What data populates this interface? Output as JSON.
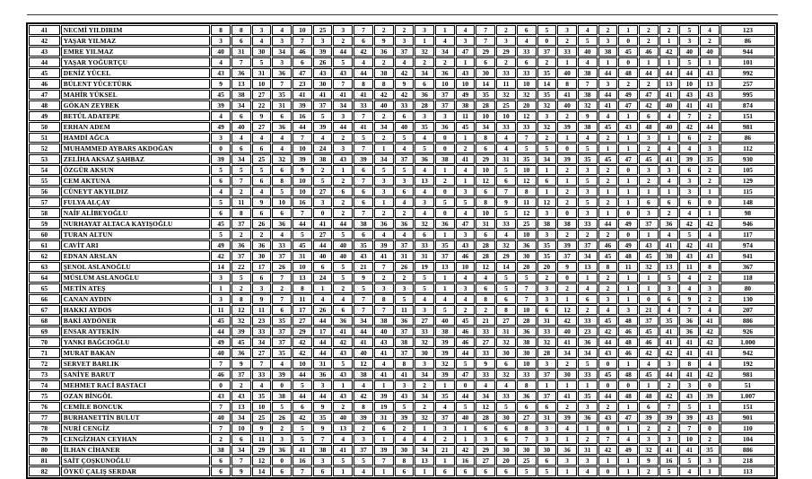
{
  "table": {
    "rows": [
      {
        "no": "41",
        "name": "NECMİ YILDIRIM",
        "values": [
          8,
          8,
          3,
          4,
          10,
          25,
          3,
          7,
          2,
          2,
          3,
          1,
          4,
          7,
          2,
          6,
          5,
          3,
          4,
          2,
          1,
          2,
          2,
          5,
          4
        ],
        "total": "123"
      },
      {
        "no": "42",
        "name": "YAŞAR YILMAZ",
        "values": [
          3,
          6,
          4,
          3,
          7,
          3,
          2,
          6,
          9,
          3,
          1,
          4,
          3,
          7,
          3,
          4,
          0,
          2,
          5,
          3,
          0,
          2,
          1,
          3,
          2
        ],
        "total": "86"
      },
      {
        "no": "43",
        "name": "EMRE YILMAZ",
        "values": [
          40,
          31,
          30,
          34,
          46,
          39,
          44,
          42,
          36,
          37,
          32,
          34,
          47,
          29,
          29,
          33,
          37,
          33,
          40,
          38,
          45,
          46,
          42,
          40,
          40
        ],
        "total": "944"
      },
      {
        "no": "44",
        "name": "YAŞAR YOĞURTÇU",
        "values": [
          4,
          7,
          5,
          3,
          6,
          26,
          5,
          4,
          2,
          4,
          2,
          2,
          1,
          6,
          2,
          6,
          2,
          1,
          4,
          1,
          0,
          1,
          1,
          5,
          1
        ],
        "total": "101"
      },
      {
        "no": "45",
        "name": "DENİZ YÜCEL",
        "values": [
          43,
          36,
          31,
          36,
          47,
          43,
          43,
          44,
          38,
          42,
          34,
          36,
          43,
          30,
          33,
          33,
          35,
          40,
          38,
          44,
          48,
          44,
          44,
          44,
          43
        ],
        "total": "992"
      },
      {
        "no": "46",
        "name": "BÜLENT YÜCETÜRK",
        "values": [
          9,
          13,
          10,
          7,
          23,
          30,
          7,
          8,
          8,
          9,
          6,
          10,
          10,
          14,
          11,
          10,
          14,
          8,
          7,
          3,
          2,
          2,
          13,
          10,
          13
        ],
        "total": "257"
      },
      {
        "no": "47",
        "name": "MAHİR YÜKSEL",
        "values": [
          45,
          38,
          27,
          35,
          41,
          41,
          41,
          41,
          42,
          42,
          36,
          37,
          49,
          35,
          32,
          32,
          35,
          41,
          38,
          44,
          49,
          47,
          41,
          43,
          43
        ],
        "total": "995"
      },
      {
        "no": "48",
        "name": "GÖKAN ZEYBEK",
        "values": [
          39,
          34,
          22,
          31,
          39,
          37,
          34,
          33,
          40,
          33,
          28,
          37,
          38,
          28,
          25,
          20,
          32,
          40,
          32,
          41,
          47,
          42,
          40,
          41,
          41
        ],
        "total": "874"
      },
      {
        "no": "49",
        "name": "BETÜL ADATEPE",
        "values": [
          4,
          6,
          9,
          6,
          16,
          5,
          3,
          7,
          2,
          6,
          3,
          3,
          11,
          10,
          10,
          12,
          3,
          2,
          9,
          4,
          1,
          6,
          4,
          7,
          2
        ],
        "total": "151"
      },
      {
        "no": "50",
        "name": "ERHAN ADEM",
        "values": [
          49,
          40,
          27,
          36,
          44,
          39,
          44,
          41,
          34,
          40,
          35,
          36,
          45,
          34,
          33,
          33,
          32,
          39,
          38,
          45,
          43,
          48,
          40,
          42,
          44
        ],
        "total": "981"
      },
      {
        "no": "51",
        "name": "HAMDİ AĞCA",
        "values": [
          3,
          4,
          4,
          4,
          7,
          4,
          2,
          5,
          2,
          5,
          4,
          0,
          1,
          8,
          4,
          7,
          2,
          1,
          4,
          2,
          1,
          3,
          1,
          6,
          2
        ],
        "total": "86"
      },
      {
        "no": "52",
        "name": "MUHAMMED AYBARS AKDOĞAN",
        "values": [
          0,
          6,
          6,
          4,
          10,
          24,
          3,
          7,
          1,
          4,
          5,
          0,
          2,
          6,
          4,
          5,
          5,
          0,
          5,
          1,
          1,
          2,
          4,
          4,
          3
        ],
        "total": "112"
      },
      {
        "no": "53",
        "name": "ZELİHA AKSAZ ŞAHBAZ",
        "values": [
          39,
          34,
          25,
          32,
          39,
          38,
          43,
          39,
          34,
          37,
          36,
          38,
          41,
          29,
          31,
          35,
          34,
          39,
          35,
          45,
          47,
          45,
          41,
          39,
          35
        ],
        "total": "930"
      },
      {
        "no": "54",
        "name": "ÖZGÜR AKSUN",
        "values": [
          5,
          5,
          5,
          6,
          9,
          2,
          1,
          6,
          5,
          5,
          4,
          1,
          4,
          10,
          5,
          10,
          1,
          2,
          3,
          2,
          0,
          3,
          3,
          6,
          2
        ],
        "total": "105"
      },
      {
        "no": "55",
        "name": "CEM AKTUNA",
        "values": [
          6,
          7,
          6,
          8,
          10,
          5,
          2,
          7,
          3,
          3,
          13,
          2,
          1,
          12,
          6,
          12,
          6,
          1,
          5,
          2,
          1,
          2,
          4,
          3,
          2
        ],
        "total": "129"
      },
      {
        "no": "56",
        "name": "CÜNEYT AKYILDIZ",
        "values": [
          4,
          2,
          4,
          5,
          10,
          27,
          6,
          6,
          3,
          6,
          4,
          0,
          3,
          6,
          7,
          8,
          1,
          2,
          3,
          1,
          1,
          1,
          1,
          3,
          1
        ],
        "total": "115"
      },
      {
        "no": "57",
        "name": "FULYA ALÇAY",
        "values": [
          5,
          11,
          9,
          10,
          16,
          3,
          2,
          6,
          1,
          4,
          3,
          5,
          5,
          8,
          9,
          11,
          12,
          2,
          5,
          2,
          1,
          6,
          6,
          6,
          0
        ],
        "total": "148"
      },
      {
        "no": "58",
        "name": "NAİF ALİBEYOĞLU",
        "values": [
          6,
          8,
          6,
          6,
          7,
          0,
          2,
          7,
          2,
          2,
          4,
          0,
          4,
          10,
          5,
          12,
          3,
          0,
          3,
          1,
          0,
          3,
          2,
          4,
          1
        ],
        "total": "98"
      },
      {
        "no": "59",
        "name": "NURHAYAT ALTACA KAYIŞOĞLU",
        "values": [
          45,
          37,
          26,
          36,
          44,
          41,
          44,
          38,
          36,
          36,
          32,
          36,
          47,
          31,
          33,
          25,
          38,
          38,
          33,
          44,
          49,
          37,
          36,
          42,
          42
        ],
        "total": "946"
      },
      {
        "no": "60",
        "name": "TURAN ALTUN",
        "values": [
          5,
          2,
          2,
          4,
          5,
          27,
          5,
          6,
          4,
          4,
          6,
          1,
          3,
          6,
          4,
          10,
          3,
          2,
          2,
          2,
          0,
          1,
          4,
          5,
          4
        ],
        "total": "117"
      },
      {
        "no": "61",
        "name": "CAVİT ARI",
        "values": [
          49,
          36,
          36,
          33,
          45,
          44,
          40,
          35,
          39,
          37,
          33,
          35,
          43,
          28,
          32,
          36,
          35,
          39,
          37,
          46,
          49,
          43,
          41,
          42,
          41
        ],
        "total": "974"
      },
      {
        "no": "62",
        "name": "EDNAN ARSLAN",
        "values": [
          42,
          37,
          30,
          37,
          31,
          40,
          40,
          43,
          41,
          31,
          31,
          37,
          46,
          28,
          29,
          30,
          35,
          37,
          34,
          45,
          48,
          45,
          38,
          43,
          43
        ],
        "total": "941"
      },
      {
        "no": "63",
        "name": "ŞENOL ASLANOĞLU",
        "values": [
          14,
          22,
          17,
          26,
          10,
          6,
          5,
          21,
          7,
          26,
          19,
          13,
          10,
          12,
          14,
          20,
          20,
          9,
          13,
          8,
          11,
          32,
          13,
          11,
          8
        ],
        "total": "367"
      },
      {
        "no": "64",
        "name": "MÜSLÜM ASLANOĞLU",
        "values": [
          3,
          5,
          6,
          7,
          13,
          24,
          5,
          9,
          2,
          2,
          5,
          1,
          4,
          4,
          5,
          5,
          2,
          0,
          1,
          2,
          1,
          1,
          5,
          4,
          2
        ],
        "total": "118"
      },
      {
        "no": "65",
        "name": "METİN ATEŞ",
        "values": [
          1,
          2,
          3,
          2,
          8,
          1,
          2,
          5,
          3,
          3,
          5,
          1,
          3,
          6,
          5,
          7,
          3,
          2,
          4,
          2,
          1,
          1,
          3,
          4,
          3
        ],
        "total": "80"
      },
      {
        "no": "66",
        "name": "CANAN AYDIN",
        "values": [
          3,
          8,
          9,
          7,
          11,
          4,
          4,
          7,
          8,
          5,
          4,
          4,
          4,
          8,
          6,
          7,
          3,
          1,
          6,
          3,
          1,
          0,
          6,
          9,
          2
        ],
        "total": "130"
      },
      {
        "no": "67",
        "name": "HAKKI AYDOS",
        "values": [
          11,
          12,
          11,
          6,
          17,
          26,
          6,
          7,
          7,
          11,
          3,
          5,
          2,
          2,
          8,
          10,
          6,
          12,
          2,
          4,
          3,
          21,
          4,
          7,
          4
        ],
        "total": "207"
      },
      {
        "no": "68",
        "name": "BAKİ AYDÖNER",
        "values": [
          45,
          32,
          23,
          35,
          27,
          44,
          36,
          34,
          38,
          36,
          27,
          40,
          45,
          21,
          27,
          28,
          31,
          42,
          33,
          45,
          48,
          37,
          35,
          36,
          41
        ],
        "total": "886"
      },
      {
        "no": "69",
        "name": "ENSAR AYTEKİN",
        "values": [
          44,
          39,
          33,
          37,
          29,
          17,
          41,
          44,
          40,
          37,
          33,
          38,
          46,
          33,
          31,
          36,
          33,
          40,
          23,
          42,
          46,
          45,
          41,
          36,
          42
        ],
        "total": "926"
      },
      {
        "no": "70",
        "name": "YANKI BAĞCIOĞLU",
        "values": [
          49,
          45,
          34,
          37,
          42,
          44,
          42,
          41,
          43,
          38,
          32,
          39,
          46,
          27,
          32,
          38,
          32,
          41,
          36,
          44,
          48,
          46,
          41,
          41,
          42
        ],
        "total": "1.000"
      },
      {
        "no": "71",
        "name": "MURAT BAKAN",
        "values": [
          40,
          36,
          27,
          35,
          42,
          44,
          43,
          40,
          41,
          37,
          30,
          39,
          44,
          33,
          30,
          30,
          28,
          34,
          34,
          43,
          46,
          42,
          42,
          41,
          41
        ],
        "total": "942"
      },
      {
        "no": "72",
        "name": "SERVET BARLIK",
        "values": [
          7,
          9,
          7,
          4,
          10,
          31,
          5,
          12,
          4,
          8,
          3,
          32,
          5,
          9,
          6,
          10,
          3,
          2,
          5,
          0,
          1,
          4,
          3,
          8,
          4
        ],
        "total": "192"
      },
      {
        "no": "73",
        "name": "SANİYE BARUT",
        "values": [
          46,
          37,
          33,
          39,
          44,
          36,
          43,
          38,
          41,
          41,
          34,
          39,
          47,
          33,
          32,
          33,
          37,
          30,
          33,
          45,
          48,
          45,
          44,
          41,
          42
        ],
        "total": "981"
      },
      {
        "no": "74",
        "name": "MEHMET RACİ BASTACI",
        "values": [
          0,
          2,
          4,
          0,
          5,
          3,
          1,
          4,
          1,
          3,
          2,
          1,
          0,
          4,
          4,
          8,
          1,
          1,
          1,
          0,
          0,
          1,
          2,
          3,
          0
        ],
        "total": "51"
      },
      {
        "no": "75",
        "name": "OZAN BİNGÖL",
        "values": [
          43,
          43,
          35,
          38,
          44,
          44,
          43,
          42,
          39,
          43,
          34,
          35,
          44,
          34,
          33,
          36,
          37,
          41,
          35,
          44,
          48,
          48,
          42,
          43,
          39
        ],
        "total": "1.007"
      },
      {
        "no": "76",
        "name": "CEMİLE BONCUK",
        "values": [
          7,
          13,
          10,
          5,
          6,
          9,
          2,
          8,
          19,
          5,
          2,
          4,
          5,
          12,
          5,
          6,
          6,
          2,
          3,
          2,
          1,
          6,
          7,
          5,
          1
        ],
        "total": "151"
      },
      {
        "no": "77",
        "name": "BURHANETTİN BULUT",
        "values": [
          40,
          34,
          25,
          26,
          42,
          35,
          40,
          39,
          31,
          39,
          32,
          37,
          40,
          28,
          30,
          27,
          31,
          39,
          36,
          43,
          47,
          39,
          39,
          39,
          43
        ],
        "total": "901"
      },
      {
        "no": "78",
        "name": "NURİ CENGİZ",
        "values": [
          7,
          10,
          9,
          2,
          5,
          9,
          13,
          2,
          6,
          2,
          1,
          3,
          1,
          6,
          6,
          8,
          3,
          4,
          1,
          0,
          1,
          2,
          2,
          7,
          0
        ],
        "total": "110"
      },
      {
        "no": "79",
        "name": "CENGİZHAN CEYHAN",
        "values": [
          2,
          6,
          11,
          3,
          5,
          7,
          4,
          3,
          1,
          4,
          4,
          2,
          1,
          3,
          6,
          7,
          3,
          1,
          2,
          7,
          4,
          3,
          3,
          10,
          2
        ],
        "total": "104"
      },
      {
        "no": "80",
        "name": "İLHAN CİHANER",
        "values": [
          38,
          34,
          29,
          36,
          41,
          38,
          41,
          37,
          39,
          30,
          34,
          21,
          42,
          29,
          30,
          30,
          30,
          36,
          31,
          42,
          49,
          32,
          41,
          41,
          35
        ],
        "total": "886"
      },
      {
        "no": "81",
        "name": "SAİT ÇOŞKUNOĞLU",
        "values": [
          6,
          7,
          12,
          0,
          16,
          3,
          5,
          5,
          7,
          8,
          13,
          1,
          16,
          27,
          20,
          25,
          6,
          3,
          3,
          1,
          1,
          9,
          16,
          5,
          3
        ],
        "total": "218"
      },
      {
        "no": "82",
        "name": "ÖYKÜ ÇALIŞ SERDAR",
        "values": [
          6,
          9,
          14,
          6,
          7,
          6,
          1,
          4,
          1,
          6,
          1,
          6,
          6,
          6,
          6,
          5,
          5,
          1,
          4,
          0,
          1,
          2,
          5,
          4,
          1
        ],
        "total": "113"
      }
    ]
  }
}
